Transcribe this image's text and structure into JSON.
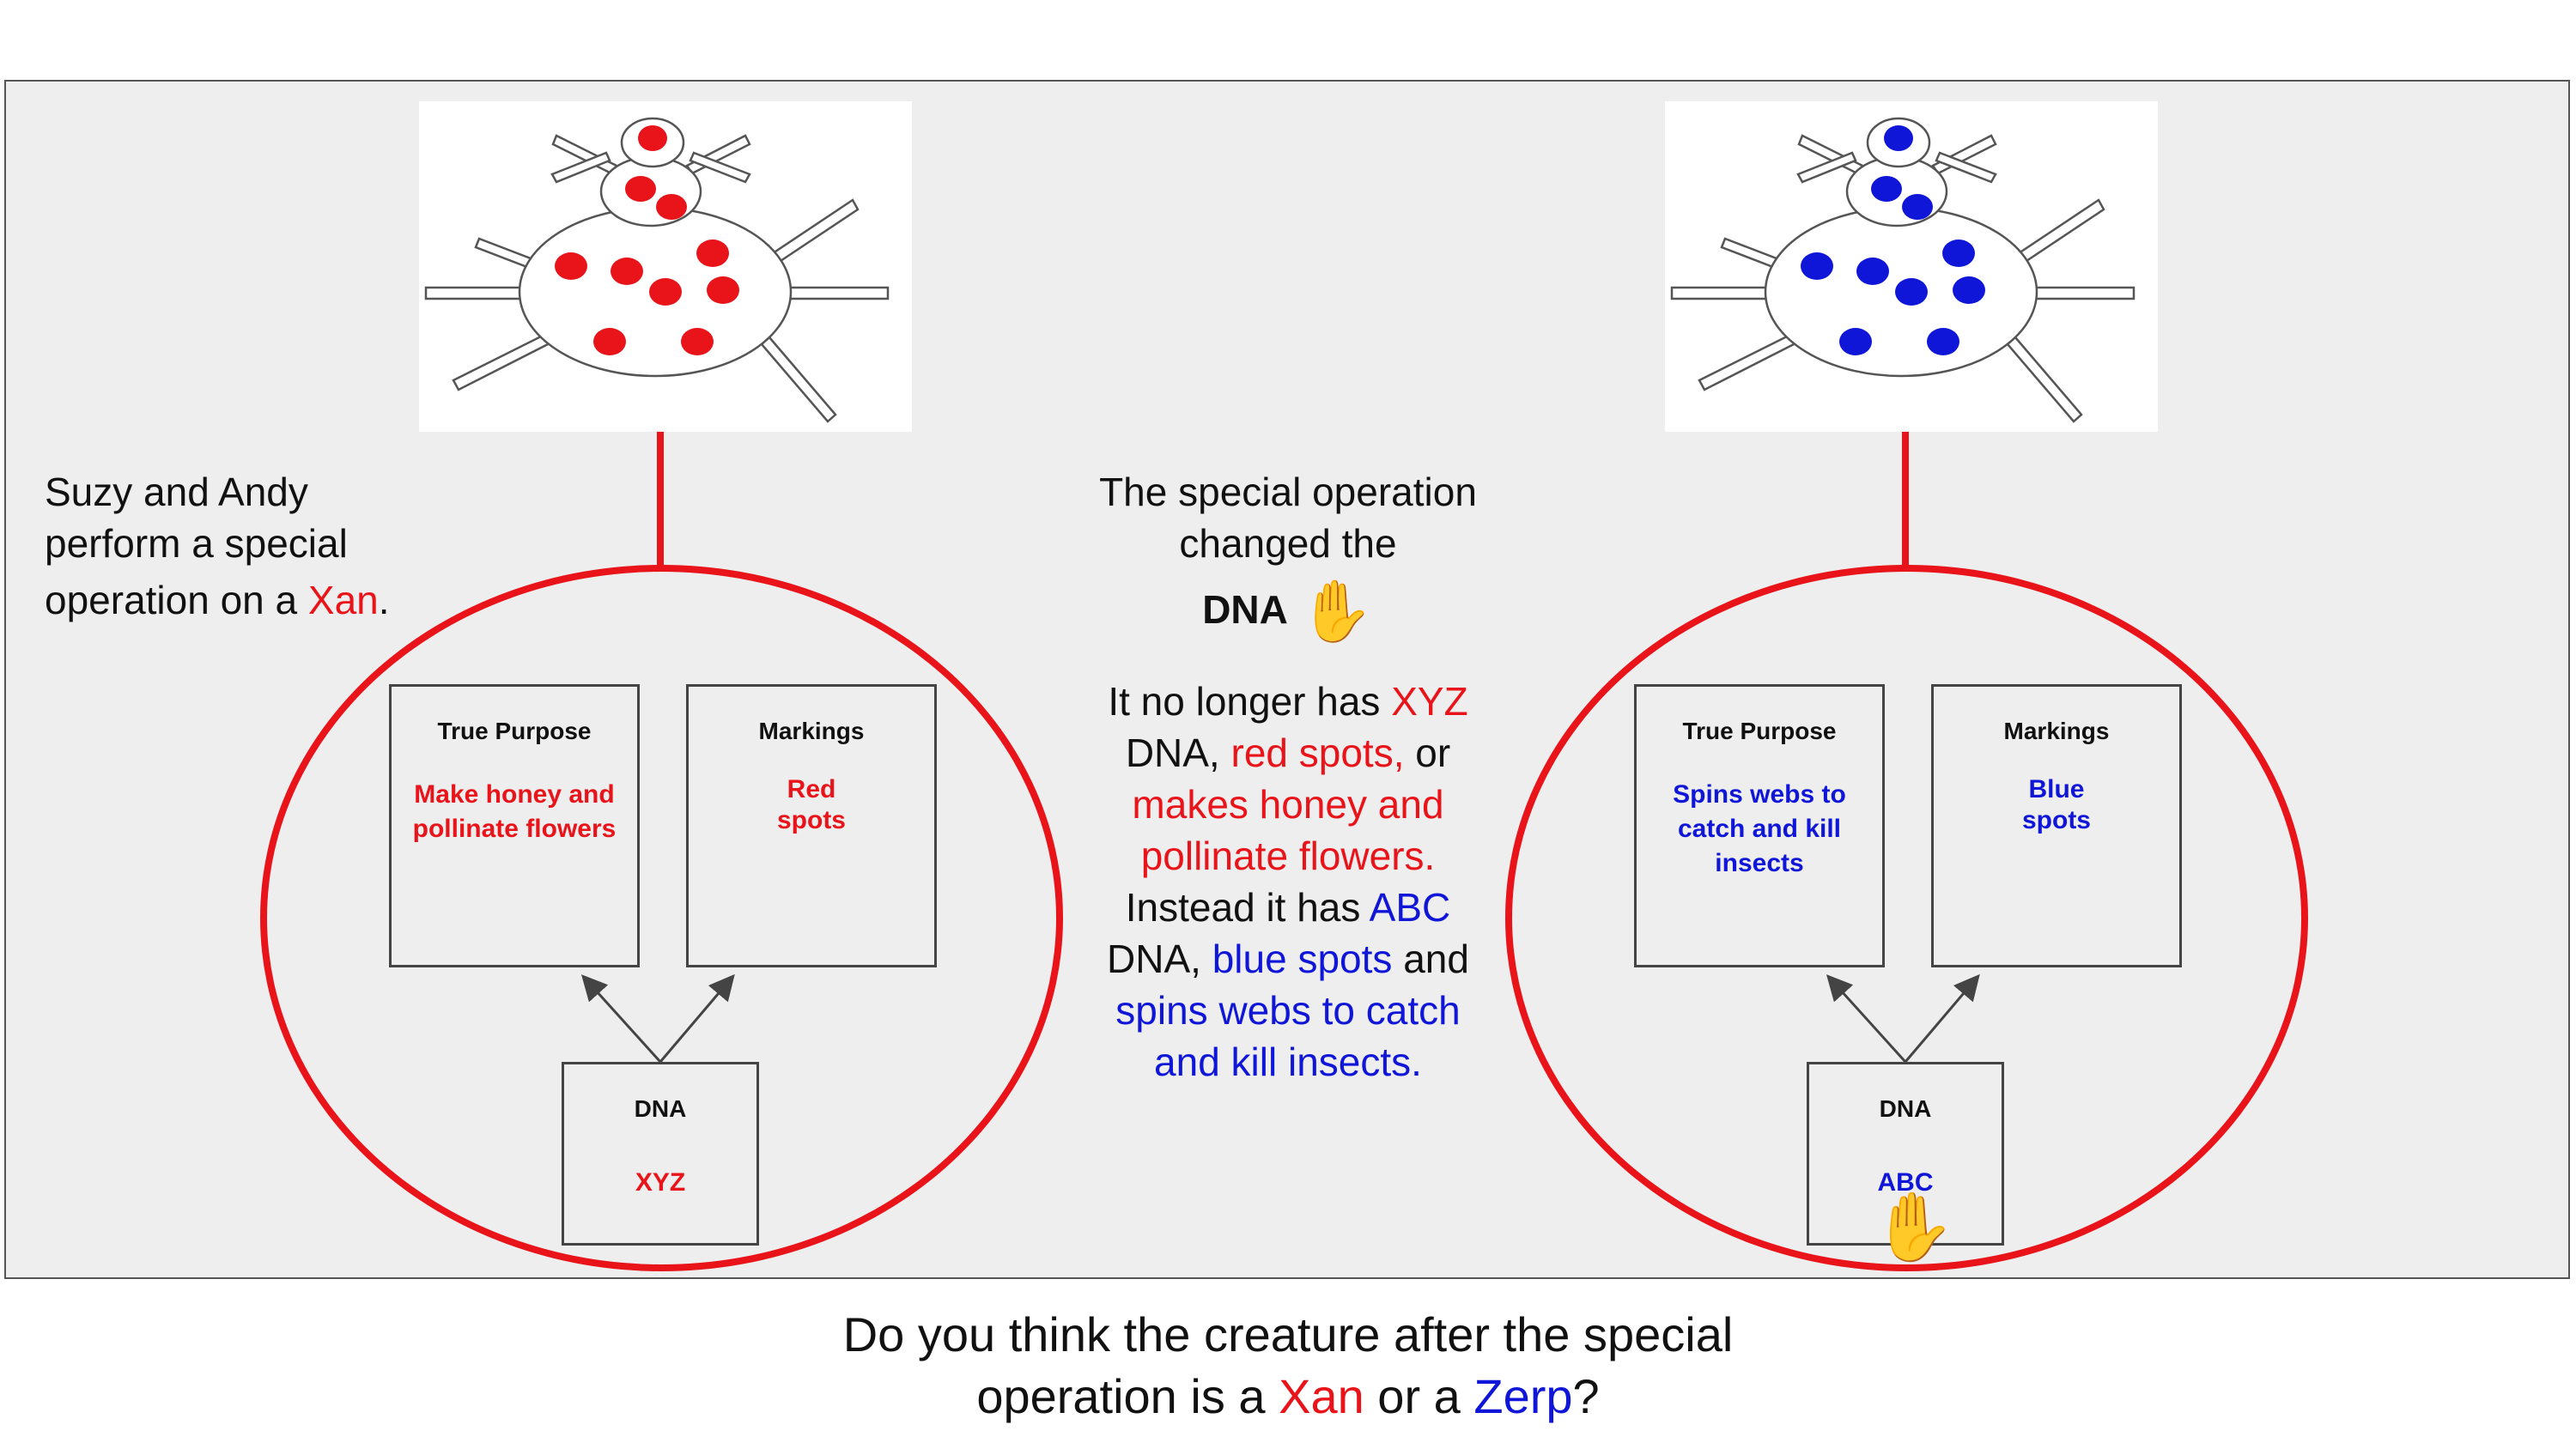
{
  "colors": {
    "red": "#e8141a",
    "blue": "#0f16d8",
    "panel": "#eeeeee"
  },
  "left_xan": {
    "intro": [
      "Suzy and Andy",
      "perform a special",
      "operation on a ",
      "Xan",
      "."
    ],
    "true_purpose": {
      "label": "True Purpose",
      "value": "Make honey and pollinate flowers"
    },
    "markings": {
      "label": "Markings",
      "value": "Red spots"
    },
    "dna": {
      "label": "DNA",
      "value": "XYZ"
    }
  },
  "right_creature": {
    "true_purpose": {
      "label": "True Purpose",
      "value": "Spins webs to catch and kill insects"
    },
    "markings": {
      "label": "Markings",
      "value": "Blue spots"
    },
    "dna": {
      "label": "DNA",
      "value": "ABC"
    }
  },
  "middle": {
    "line1": "The special operation",
    "line2": "changed the",
    "dna_word": "DNA",
    "p1": "It no longer has ",
    "xyz": "XYZ",
    "p2": "DNA, ",
    "red_spots": "red spots,",
    "p3": " or",
    "honey": "makes honey and",
    "pollinate": "pollinate flowers.",
    "p4": "Instead it has ",
    "abc": "ABC",
    "p5": "DNA, ",
    "blue_spots": "blue spots",
    "p6": " and",
    "webs": "spins webs to catch",
    "kill": "and kill insects."
  },
  "question": {
    "line1": "Do you think the creature after the special",
    "line2a": "operation is a ",
    "xan": "Xan",
    "or": " or a ",
    "zerp": "Zerp",
    "qmark": "?"
  },
  "icons": {
    "raised_hand": "✋"
  }
}
